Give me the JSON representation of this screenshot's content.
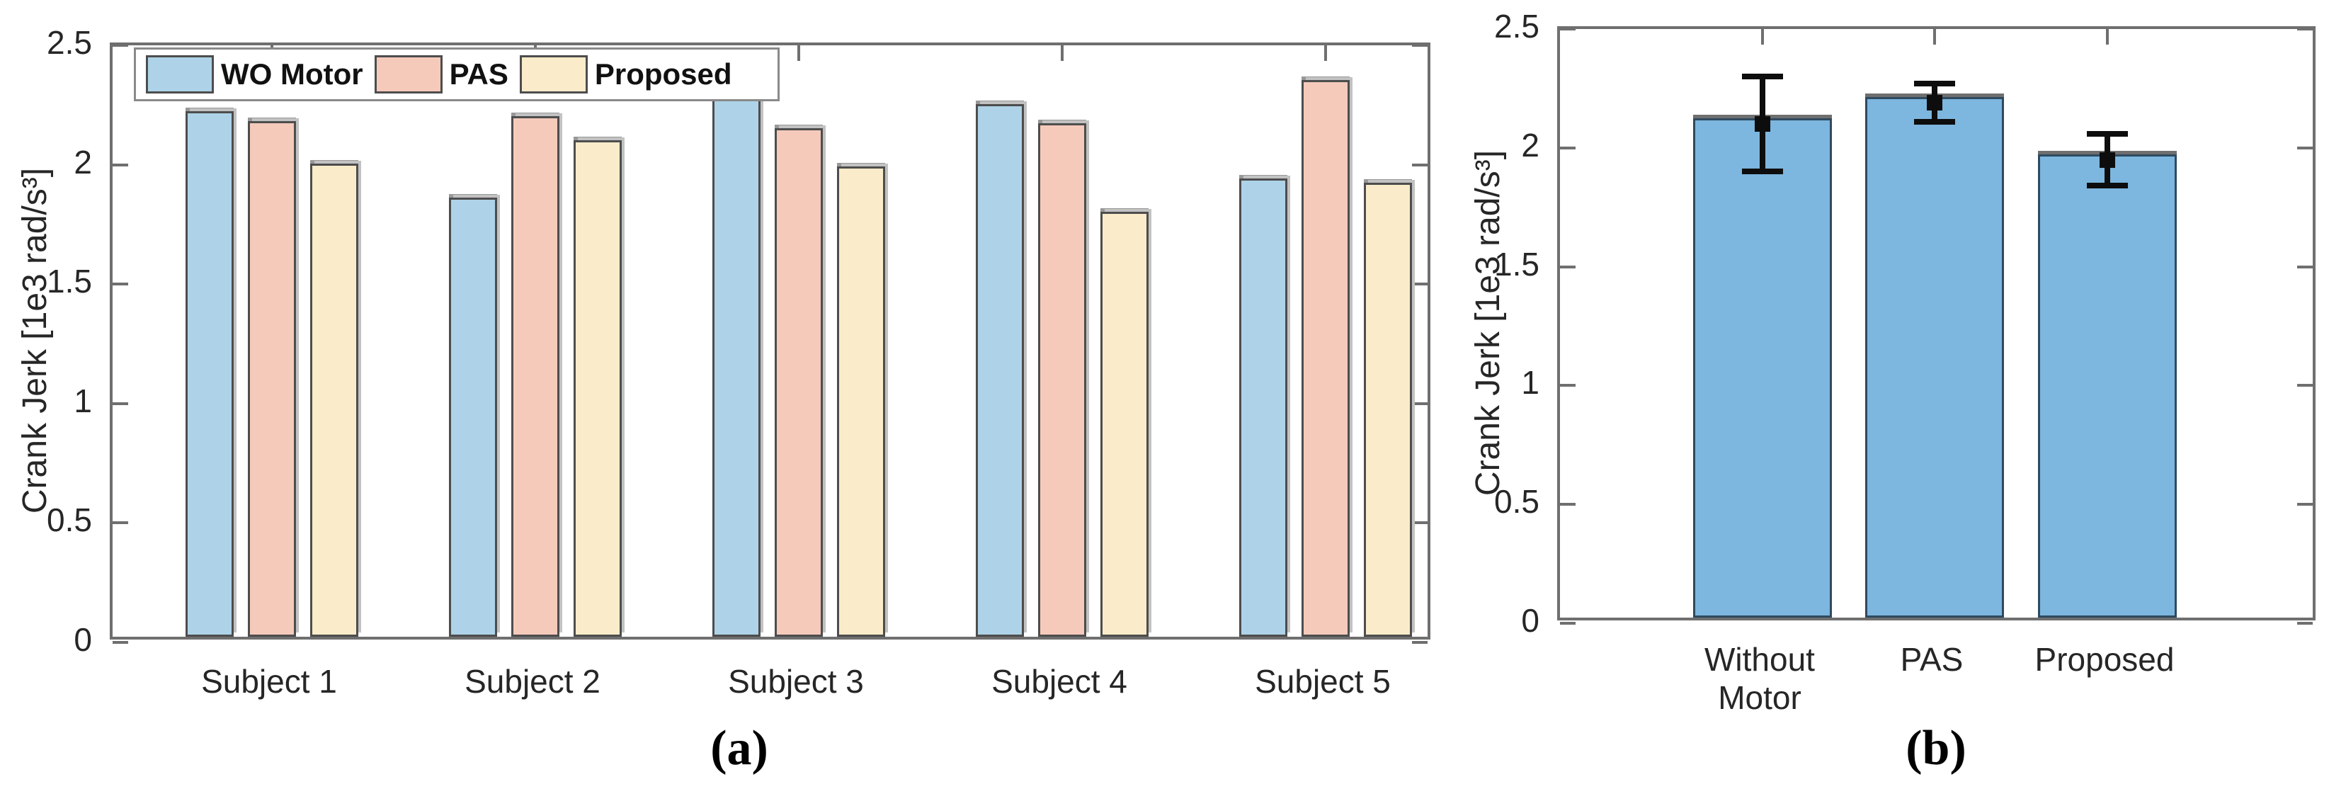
{
  "figure": {
    "background": "#ffffff",
    "style": {
      "axis_color": "#6f6f6f",
      "text_color": "#262626",
      "bar_edge_a": "#4d4d4d",
      "bar_edge_b": "#2e4a60",
      "bar_shadow": "#989898",
      "error_color": "#0d0d0d"
    }
  },
  "chart_data": [
    {
      "id": "a",
      "type": "bar",
      "caption": "(a)",
      "ylabel": "Crank Jerk [1e3 rad/s³]",
      "ylim": [
        0,
        2.5
      ],
      "yticks": [
        0,
        0.5,
        1,
        1.5,
        2,
        2.5
      ],
      "ytick_labels": [
        "0",
        "0.5",
        "1",
        "1.5",
        "2",
        "2.5"
      ],
      "categories": [
        "Subject 1",
        "Subject 2",
        "Subject 3",
        "Subject 4",
        "Subject 5"
      ],
      "grid": false,
      "legend_position": "top-left-inside-horizontal",
      "series": [
        {
          "name": "WO Motor",
          "color": "#AED3E8",
          "values": [
            2.2,
            1.84,
            2.29,
            2.23,
            1.92
          ]
        },
        {
          "name": "PAS",
          "color": "#F5CABB",
          "values": [
            2.16,
            2.18,
            2.13,
            2.15,
            2.33
          ]
        },
        {
          "name": "Proposed",
          "color": "#FAECCA",
          "values": [
            1.98,
            2.08,
            1.97,
            1.78,
            1.9
          ]
        }
      ]
    },
    {
      "id": "b",
      "type": "bar",
      "caption": "(b)",
      "ylabel": "Crank Jerk [1e3 rad/s³]",
      "ylim": [
        0,
        2.5
      ],
      "yticks": [
        0,
        0.5,
        1,
        1.5,
        2,
        2.5
      ],
      "ytick_labels": [
        "0",
        "0.5",
        "1",
        "1.5",
        "2",
        "2.5"
      ],
      "categories": [
        "Without\nMotor",
        "PAS",
        "Proposed"
      ],
      "grid": false,
      "bar_color": "#7DB6DE",
      "values": [
        2.1,
        2.19,
        1.95
      ],
      "errors": [
        0.2,
        0.08,
        0.11
      ]
    }
  ]
}
